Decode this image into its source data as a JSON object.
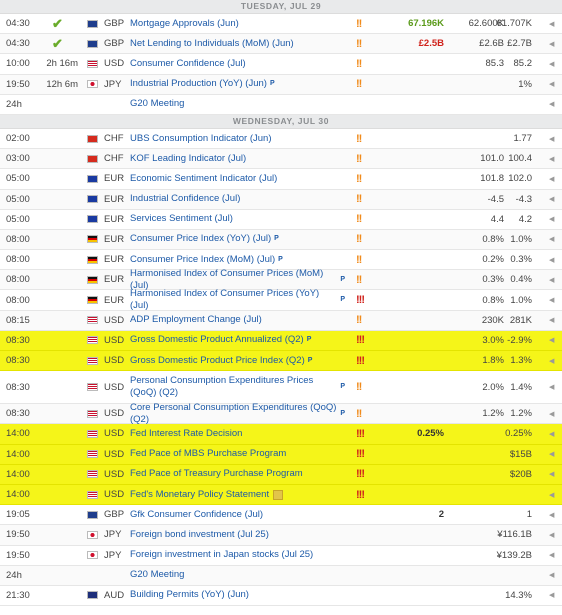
{
  "colors": {
    "highlight": "#f5f519",
    "link": "#1d5aa8",
    "positive": "#5a9a1a",
    "negative": "#d0221b",
    "medium_impact": "#f08a1a",
    "high_impact": "#d0221b"
  },
  "days": [
    {
      "label": "TUESDAY, JUL 29",
      "rows": [
        {
          "time": "04:30",
          "countdown": "",
          "check": true,
          "country": "GB",
          "currency": "GBP",
          "event": "Mortgage Approvals (Jun)",
          "p": false,
          "sq": false,
          "impact": "!!",
          "impact_level": "medium",
          "actual": "67.196K",
          "actual_class": "pos",
          "forecast": "62.600K",
          "previous": "61.707K",
          "highlight": false,
          "tall": false
        },
        {
          "time": "04:30",
          "countdown": "",
          "check": true,
          "country": "GB",
          "currency": "GBP",
          "event": "Net Lending to Individuals (MoM) (Jun)",
          "p": false,
          "sq": false,
          "impact": "!!",
          "impact_level": "medium",
          "actual": "£2.5B",
          "actual_class": "neg",
          "forecast": "£2.6B",
          "previous": "£2.7B",
          "highlight": false,
          "tall": false
        },
        {
          "time": "10:00",
          "countdown": "2h 16m",
          "check": false,
          "country": "US",
          "currency": "USD",
          "event": "Consumer Confidence (Jul)",
          "p": false,
          "sq": false,
          "impact": "!!",
          "impact_level": "medium",
          "actual": "",
          "actual_class": "",
          "forecast": "85.3",
          "previous": "85.2",
          "highlight": false,
          "tall": false
        },
        {
          "time": "19:50",
          "countdown": "12h 6m",
          "check": false,
          "country": "JP",
          "currency": "JPY",
          "event": "Industrial Production (YoY) (Jun)",
          "p": true,
          "sq": false,
          "impact": "!!",
          "impact_level": "medium",
          "actual": "",
          "actual_class": "",
          "forecast": "",
          "previous": "1%",
          "highlight": false,
          "tall": false
        },
        {
          "time": "24h",
          "countdown": "",
          "check": false,
          "country": "",
          "currency": "",
          "event": "G20 Meeting",
          "p": false,
          "sq": false,
          "impact": "",
          "impact_level": "",
          "actual": "",
          "actual_class": "",
          "forecast": "",
          "previous": "",
          "highlight": false,
          "tall": false
        }
      ]
    },
    {
      "label": "WEDNESDAY, JUL 30",
      "rows": [
        {
          "time": "02:00",
          "countdown": "",
          "check": false,
          "country": "CH",
          "currency": "CHF",
          "event": "UBS Consumption Indicator (Jun)",
          "p": false,
          "sq": false,
          "impact": "!!",
          "impact_level": "medium",
          "actual": "",
          "actual_class": "",
          "forecast": "",
          "previous": "1.77",
          "highlight": false,
          "tall": false
        },
        {
          "time": "03:00",
          "countdown": "",
          "check": false,
          "country": "CH",
          "currency": "CHF",
          "event": "KOF Leading Indicator (Jul)",
          "p": false,
          "sq": false,
          "impact": "!!",
          "impact_level": "medium",
          "actual": "",
          "actual_class": "",
          "forecast": "101.0",
          "previous": "100.4",
          "highlight": false,
          "tall": false
        },
        {
          "time": "05:00",
          "countdown": "",
          "check": false,
          "country": "EU",
          "currency": "EUR",
          "event": "Economic Sentiment Indicator (Jul)",
          "p": false,
          "sq": false,
          "impact": "!!",
          "impact_level": "medium",
          "actual": "",
          "actual_class": "",
          "forecast": "101.8",
          "previous": "102.0",
          "highlight": false,
          "tall": false
        },
        {
          "time": "05:00",
          "countdown": "",
          "check": false,
          "country": "EU",
          "currency": "EUR",
          "event": "Industrial Confidence (Jul)",
          "p": false,
          "sq": false,
          "impact": "!!",
          "impact_level": "medium",
          "actual": "",
          "actual_class": "",
          "forecast": "-4.5",
          "previous": "-4.3",
          "highlight": false,
          "tall": false
        },
        {
          "time": "05:00",
          "countdown": "",
          "check": false,
          "country": "EU",
          "currency": "EUR",
          "event": "Services Sentiment (Jul)",
          "p": false,
          "sq": false,
          "impact": "!!",
          "impact_level": "medium",
          "actual": "",
          "actual_class": "",
          "forecast": "4.4",
          "previous": "4.2",
          "highlight": false,
          "tall": false
        },
        {
          "time": "08:00",
          "countdown": "",
          "check": false,
          "country": "DE",
          "currency": "EUR",
          "event": "Consumer Price Index (YoY) (Jul)",
          "p": true,
          "sq": false,
          "impact": "!!",
          "impact_level": "medium",
          "actual": "",
          "actual_class": "",
          "forecast": "0.8%",
          "previous": "1.0%",
          "highlight": false,
          "tall": false
        },
        {
          "time": "08:00",
          "countdown": "",
          "check": false,
          "country": "DE",
          "currency": "EUR",
          "event": "Consumer Price Index (MoM) (Jul)",
          "p": true,
          "sq": false,
          "impact": "!!",
          "impact_level": "medium",
          "actual": "",
          "actual_class": "",
          "forecast": "0.2%",
          "previous": "0.3%",
          "highlight": false,
          "tall": false
        },
        {
          "time": "08:00",
          "countdown": "",
          "check": false,
          "country": "DE",
          "currency": "EUR",
          "event": "Harmonised Index of Consumer Prices (MoM) (Jul)",
          "p": true,
          "sq": false,
          "impact": "!!",
          "impact_level": "medium",
          "actual": "",
          "actual_class": "",
          "forecast": "0.3%",
          "previous": "0.4%",
          "highlight": false,
          "tall": false
        },
        {
          "time": "08:00",
          "countdown": "",
          "check": false,
          "country": "DE",
          "currency": "EUR",
          "event": "Harmonised Index of Consumer Prices (YoY) (Jul)",
          "p": true,
          "sq": false,
          "impact": "!!!",
          "impact_level": "high",
          "actual": "",
          "actual_class": "",
          "forecast": "0.8%",
          "previous": "1.0%",
          "highlight": false,
          "tall": false
        },
        {
          "time": "08:15",
          "countdown": "",
          "check": false,
          "country": "US",
          "currency": "USD",
          "event": "ADP Employment Change (Jul)",
          "p": false,
          "sq": false,
          "impact": "!!",
          "impact_level": "medium",
          "actual": "",
          "actual_class": "",
          "forecast": "230K",
          "previous": "281K",
          "highlight": false,
          "tall": false
        },
        {
          "time": "08:30",
          "countdown": "",
          "check": false,
          "country": "US",
          "currency": "USD",
          "event": "Gross Domestic Product Annualized (Q2)",
          "p": true,
          "sq": false,
          "impact": "!!!",
          "impact_level": "high",
          "actual": "",
          "actual_class": "",
          "forecast": "3.0%",
          "previous": "-2.9%",
          "highlight": true,
          "tall": false
        },
        {
          "time": "08:30",
          "countdown": "",
          "check": false,
          "country": "US",
          "currency": "USD",
          "event": "Gross Domestic Product Price Index (Q2)",
          "p": true,
          "sq": false,
          "impact": "!!!",
          "impact_level": "high",
          "actual": "",
          "actual_class": "",
          "forecast": "1.8%",
          "previous": "1.3%",
          "highlight": true,
          "tall": false
        },
        {
          "time": "08:30",
          "countdown": "",
          "check": false,
          "country": "US",
          "currency": "USD",
          "event": "Personal Consumption Expenditures Prices (QoQ) (Q2)",
          "p": true,
          "sq": false,
          "impact": "!!",
          "impact_level": "medium",
          "actual": "",
          "actual_class": "",
          "forecast": "2.0%",
          "previous": "1.4%",
          "highlight": false,
          "tall": true
        },
        {
          "time": "08:30",
          "countdown": "",
          "check": false,
          "country": "US",
          "currency": "USD",
          "event": "Core Personal Consumption Expenditures (QoQ) (Q2)",
          "p": true,
          "sq": false,
          "impact": "!!",
          "impact_level": "medium",
          "actual": "",
          "actual_class": "",
          "forecast": "1.2%",
          "previous": "1.2%",
          "highlight": false,
          "tall": false
        },
        {
          "time": "14:00",
          "countdown": "",
          "check": false,
          "country": "US",
          "currency": "USD",
          "event": "Fed Interest Rate Decision",
          "p": false,
          "sq": false,
          "impact": "!!!",
          "impact_level": "high",
          "actual": "0.25%",
          "actual_class": "",
          "forecast": "",
          "previous": "0.25%",
          "highlight": true,
          "tall": false
        },
        {
          "time": "14:00",
          "countdown": "",
          "check": false,
          "country": "US",
          "currency": "USD",
          "event": "Fed Pace of MBS Purchase Program",
          "p": false,
          "sq": false,
          "impact": "!!!",
          "impact_level": "high",
          "actual": "",
          "actual_class": "",
          "forecast": "",
          "previous": "$15B",
          "highlight": true,
          "tall": false
        },
        {
          "time": "14:00",
          "countdown": "",
          "check": false,
          "country": "US",
          "currency": "USD",
          "event": "Fed Pace of Treasury Purchase Program",
          "p": false,
          "sq": false,
          "impact": "!!!",
          "impact_level": "high",
          "actual": "",
          "actual_class": "",
          "forecast": "",
          "previous": "$20B",
          "highlight": true,
          "tall": false
        },
        {
          "time": "14:00",
          "countdown": "",
          "check": false,
          "country": "US",
          "currency": "USD",
          "event": "Fed's Monetary Policy Statement",
          "p": false,
          "sq": true,
          "impact": "!!!",
          "impact_level": "high",
          "actual": "",
          "actual_class": "",
          "forecast": "",
          "previous": "",
          "highlight": true,
          "tall": false
        },
        {
          "time": "19:05",
          "countdown": "",
          "check": false,
          "country": "GB",
          "currency": "GBP",
          "event": "Gfk Consumer Confidence (Jul)",
          "p": false,
          "sq": false,
          "impact": "",
          "impact_level": "",
          "actual": "2",
          "actual_class": "",
          "forecast": "",
          "previous": "1",
          "highlight": false,
          "tall": false
        },
        {
          "time": "19:50",
          "countdown": "",
          "check": false,
          "country": "JP",
          "currency": "JPY",
          "event": "Foreign bond investment (Jul 25)",
          "p": false,
          "sq": false,
          "impact": "",
          "impact_level": "",
          "actual": "",
          "actual_class": "",
          "forecast": "",
          "previous": "¥116.1B",
          "highlight": false,
          "tall": false
        },
        {
          "time": "19:50",
          "countdown": "",
          "check": false,
          "country": "JP",
          "currency": "JPY",
          "event": "Foreign investment in Japan stocks (Jul 25)",
          "p": false,
          "sq": false,
          "impact": "",
          "impact_level": "",
          "actual": "",
          "actual_class": "",
          "forecast": "",
          "previous": "¥139.2B",
          "highlight": false,
          "tall": false
        },
        {
          "time": "24h",
          "countdown": "",
          "check": false,
          "country": "",
          "currency": "",
          "event": "G20 Meeting",
          "p": false,
          "sq": false,
          "impact": "",
          "impact_level": "",
          "actual": "",
          "actual_class": "",
          "forecast": "",
          "previous": "",
          "highlight": false,
          "tall": false
        },
        {
          "time": "21:30",
          "countdown": "",
          "check": false,
          "country": "AU",
          "currency": "AUD",
          "event": "Building Permits (YoY) (Jun)",
          "p": false,
          "sq": false,
          "impact": "",
          "impact_level": "",
          "actual": "",
          "actual_class": "",
          "forecast": "",
          "previous": "14.3%",
          "highlight": false,
          "tall": false
        }
      ]
    }
  ],
  "labels": {
    "p_marker": "P",
    "check_mark": "✔",
    "row_arrow": "◀"
  }
}
